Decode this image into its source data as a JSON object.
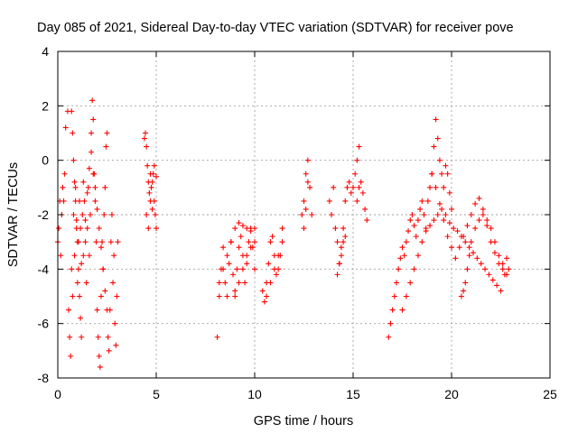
{
  "chart_data": {
    "type": "scatter",
    "title": "Day 085 of 2021, Sidereal Day-to-day VTEC variation (SDTVAR) for receiver pove",
    "xlabel": "GPS time / hours",
    "ylabel": "SDTVAR / TECUs",
    "xlim": [
      0,
      25
    ],
    "ylim": [
      -8,
      4
    ],
    "xticks": [
      "0",
      "5",
      "10",
      "15",
      "20",
      "25"
    ],
    "yticks": [
      "-8",
      "-6",
      "-4",
      "-2",
      "0",
      "2",
      "4"
    ],
    "grid": true,
    "marker": "+",
    "color": "#ff0000",
    "series": [
      {
        "x": [
          0.0,
          0.05,
          0.1,
          0.15,
          0.2,
          0.25,
          0.3,
          0.35,
          0.4,
          0.5,
          0.55,
          0.6,
          0.65,
          0.7,
          0.75,
          0.8,
          0.85,
          0.9,
          0.95,
          1.0,
          1.05,
          1.1,
          1.15,
          1.2,
          1.25,
          1.3,
          1.35,
          1.4,
          1.45,
          1.5,
          1.55,
          1.6,
          1.65,
          1.7,
          1.75,
          1.8,
          1.85,
          1.9,
          1.95,
          2.0,
          2.05,
          2.1,
          2.15,
          2.2,
          2.25,
          2.3,
          2.35,
          2.4,
          2.45,
          2.5,
          2.55,
          2.6,
          2.65,
          2.7,
          2.75,
          2.8,
          2.85,
          2.9,
          2.95,
          3.0,
          3.05,
          0.7,
          0.75,
          0.8,
          0.85,
          0.9,
          0.95,
          1.0,
          1.05,
          1.1,
          1.15,
          1.2,
          1.3,
          1.4,
          1.5,
          1.6,
          1.7,
          1.8,
          1.9,
          2.0,
          2.1,
          2.2,
          2.3,
          2.4,
          2.5,
          4.4,
          4.45,
          4.5,
          4.55,
          4.6,
          4.65,
          4.7,
          4.75,
          4.8,
          4.85,
          4.9,
          4.95,
          5.0,
          4.5,
          4.6,
          4.7,
          4.8,
          4.9,
          5.0,
          8.1,
          8.2,
          8.3,
          8.4,
          8.5,
          8.6,
          8.7,
          8.8,
          8.9,
          9.0,
          9.1,
          9.2,
          9.3,
          9.4,
          9.5,
          9.6,
          9.7,
          9.8,
          9.9,
          10.0,
          8.2,
          8.4,
          8.6,
          8.8,
          9.0,
          9.2,
          9.4,
          9.6,
          9.8,
          10.0,
          9.0,
          9.2,
          9.4,
          9.6,
          9.8,
          10.0,
          10.4,
          10.5,
          10.6,
          10.7,
          10.8,
          10.9,
          11.0,
          11.1,
          11.2,
          11.3,
          11.4,
          10.6,
          10.8,
          11.0,
          11.2,
          11.4,
          12.4,
          12.5,
          12.6,
          12.7,
          12.8,
          12.9,
          12.5,
          12.6,
          12.7,
          13.8,
          13.9,
          14.0,
          14.1,
          14.2,
          14.3,
          14.4,
          14.5,
          14.6,
          14.7,
          14.8,
          14.9,
          15.0,
          14.2,
          14.3,
          14.4,
          14.5,
          14.6,
          15.1,
          15.2,
          15.3,
          15.4,
          15.5,
          15.6,
          15.7,
          15.2,
          15.3,
          16.8,
          16.9,
          17.0,
          17.1,
          17.2,
          17.3,
          17.4,
          17.5,
          17.6,
          17.7,
          17.8,
          17.9,
          18.0,
          18.1,
          18.2,
          18.3,
          18.4,
          18.5,
          18.6,
          18.7,
          18.8,
          18.9,
          19.0,
          19.1,
          19.2,
          19.3,
          19.4,
          19.5,
          19.6,
          19.7,
          19.8,
          19.9,
          20.0,
          17.5,
          17.7,
          17.9,
          18.1,
          18.3,
          18.5,
          18.7,
          18.9,
          19.1,
          19.3,
          19.5,
          19.7,
          19.9,
          20.1,
          20.3,
          20.5,
          20.7,
          20.9,
          21.1,
          21.3,
          21.5,
          21.7,
          21.9,
          22.1,
          22.3,
          22.5,
          22.7,
          22.9,
          19.0,
          19.2,
          19.4,
          19.6,
          19.8,
          20.0,
          20.2,
          20.4,
          20.6,
          20.8,
          21.0,
          21.2,
          21.4,
          21.6,
          21.8,
          22.0,
          22.2,
          22.4,
          22.6,
          22.8,
          20.5,
          20.6,
          20.7,
          20.8,
          20.9,
          21.0,
          21.2,
          21.4,
          21.6,
          21.8,
          22.0,
          22.2,
          22.4,
          22.6,
          22.8
        ],
        "y": [
          -3.0,
          -2.5,
          -1.5,
          -3.5,
          -2.0,
          -1.0,
          -1.5,
          -0.5,
          1.2,
          1.8,
          -5.5,
          -6.5,
          -7.2,
          -4.0,
          -5.0,
          -2.0,
          -3.5,
          -1.0,
          -2.5,
          -4.5,
          -3.0,
          -1.5,
          -2.5,
          -3.8,
          -2.0,
          -0.8,
          -1.5,
          -3.0,
          -4.5,
          -2.5,
          -1.0,
          -3.5,
          -2.0,
          1.0,
          2.2,
          1.5,
          -0.5,
          -1.5,
          -3.0,
          -5.5,
          -6.5,
          -7.2,
          -7.6,
          -5.0,
          -3.0,
          -4.0,
          -2.0,
          -1.0,
          0.5,
          1.0,
          -6.5,
          -7.0,
          -5.5,
          -3.0,
          -2.0,
          -4.5,
          -3.5,
          -6.0,
          -6.8,
          -5.0,
          -3.0,
          1.8,
          1.0,
          0.0,
          -0.8,
          -1.5,
          -2.2,
          -3.0,
          -4.0,
          -5.0,
          -5.8,
          -6.5,
          -3.5,
          -2.2,
          -1.2,
          -0.3,
          0.3,
          -0.5,
          -1.0,
          -1.8,
          -2.5,
          -3.2,
          -4.0,
          -4.8,
          -5.5,
          0.8,
          1.0,
          0.5,
          -0.2,
          -0.8,
          -1.2,
          -0.5,
          -1.0,
          -1.8,
          -0.5,
          -1.5,
          -2.0,
          -2.5,
          -2.0,
          -2.5,
          -1.5,
          -0.8,
          -0.2,
          -0.6,
          -6.5,
          -5.0,
          -4.0,
          -3.2,
          -4.5,
          -5.0,
          -3.8,
          -3.0,
          -4.2,
          -4.8,
          -4.0,
          -3.2,
          -2.8,
          -3.5,
          -4.5,
          -3.8,
          -3.0,
          -2.5,
          -3.2,
          -4.0,
          -4.5,
          -4.0,
          -3.5,
          -3.0,
          -2.5,
          -2.3,
          -2.4,
          -2.5,
          -2.6,
          -2.5,
          -5.0,
          -4.5,
          -4.0,
          -3.5,
          -3.2,
          -3.0,
          -4.8,
          -5.2,
          -4.5,
          -3.8,
          -3.0,
          -2.8,
          -3.5,
          -4.2,
          -4.0,
          -3.5,
          -3.0,
          -5.0,
          -4.5,
          -4.0,
          -3.5,
          -2.5,
          -2.0,
          -1.5,
          -0.5,
          0.0,
          -1.0,
          -2.0,
          -2.5,
          -1.8,
          -0.8,
          -1.5,
          -2.0,
          -1.0,
          -2.5,
          -3.0,
          -3.8,
          -3.2,
          -2.5,
          -1.5,
          -1.0,
          -0.8,
          -1.2,
          -1.0,
          -4.2,
          -3.8,
          -3.5,
          -3.0,
          -2.8,
          -0.5,
          0.0,
          0.5,
          -0.8,
          -1.2,
          -1.8,
          -2.2,
          -1.5,
          -1.0,
          -6.5,
          -6.0,
          -5.5,
          -5.0,
          -4.5,
          -4.0,
          -3.6,
          -3.2,
          -3.5,
          -3.0,
          -2.6,
          -2.2,
          -2.0,
          -2.4,
          -2.8,
          -2.2,
          -1.8,
          -1.5,
          -2.0,
          -2.5,
          -1.5,
          -1.0,
          -0.5,
          0.5,
          1.5,
          0.8,
          0.0,
          -0.5,
          -1.0,
          -0.2,
          -0.5,
          -1.2,
          -1.8,
          -5.5,
          -5.0,
          -4.5,
          -4.0,
          -3.5,
          -3.0,
          -2.6,
          -2.4,
          -2.2,
          -2.0,
          -1.8,
          -2.0,
          -2.3,
          -2.5,
          -2.6,
          -2.8,
          -3.0,
          -3.2,
          -3.4,
          -3.6,
          -3.8,
          -4.0,
          -4.2,
          -4.4,
          -4.6,
          -4.8,
          -4.2,
          -4.0,
          -0.5,
          -1.0,
          -1.6,
          -2.2,
          -2.8,
          -3.2,
          -3.6,
          -3.2,
          -2.8,
          -2.4,
          -2.0,
          -1.6,
          -1.4,
          -1.8,
          -2.4,
          -3.0,
          -3.4,
          -3.8,
          -4.0,
          -4.2,
          -5.0,
          -4.8,
          -4.5,
          -4.0,
          -3.5,
          -3.0,
          -2.5,
          -2.2,
          -2.0,
          -2.2,
          -2.5,
          -3.0,
          -3.5,
          -3.8,
          -3.6
        ]
      }
    ]
  }
}
